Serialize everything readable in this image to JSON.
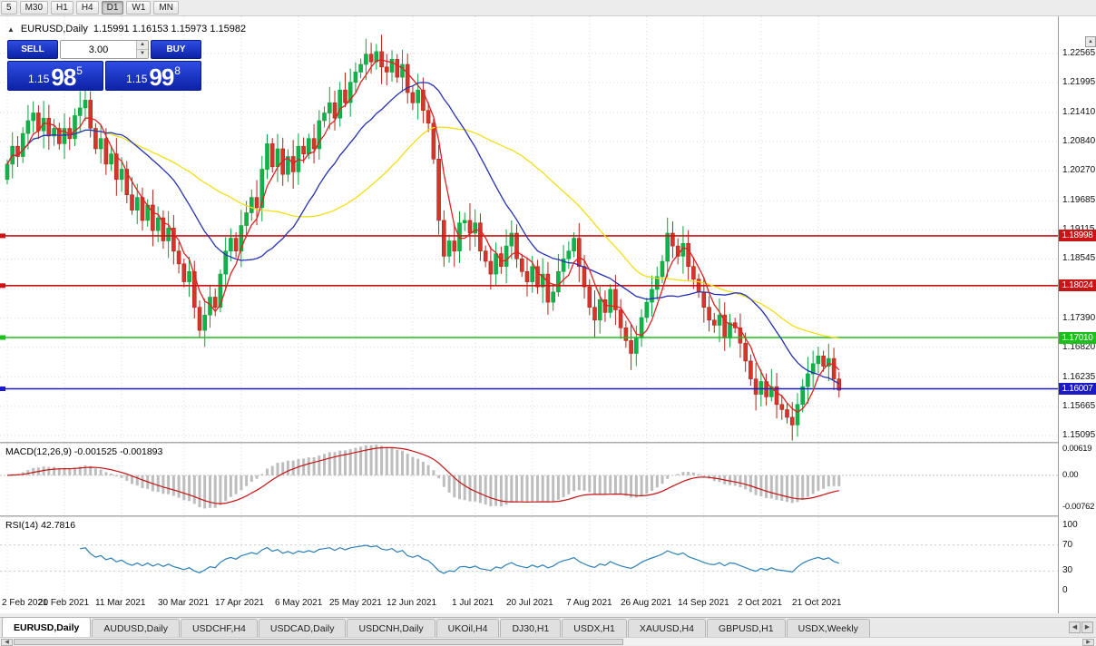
{
  "toolbar": {
    "timeframes": [
      "5",
      "M30",
      "H1",
      "H4",
      "D1",
      "W1",
      "MN"
    ],
    "active": "D1"
  },
  "chart_header": {
    "symbol": "EURUSD,Daily",
    "ohlc": "1.15991 1.16153 1.15973 1.15982"
  },
  "trade_panel": {
    "sell_label": "SELL",
    "buy_label": "BUY",
    "lots": "3.00",
    "sell_price": {
      "prefix": "1.15",
      "big": "98",
      "sup": "5"
    },
    "buy_price": {
      "prefix": "1.15",
      "big": "99",
      "sup": "8"
    }
  },
  "price_axis": {
    "ticks": [
      "1.22565",
      "1.21995",
      "1.21410",
      "1.20840",
      "1.20270",
      "1.19685",
      "1.19115",
      "1.18545",
      "1.17960",
      "1.17390",
      "1.16820",
      "1.16235",
      "1.15665",
      "1.15095"
    ]
  },
  "hlines": [
    {
      "price": 1.18998,
      "label": "1.18998",
      "color": "#c81414"
    },
    {
      "price": 1.18024,
      "label": "1.18024",
      "color": "#c81414"
    },
    {
      "price": 1.1701,
      "label": "1.17010",
      "color": "#1dbf1d"
    },
    {
      "price": 1.16007,
      "label": "1.16007",
      "color": "#1a1ac8"
    }
  ],
  "macd": {
    "label": "MACD(12,26,9) -0.001525 -0.001893",
    "axis": [
      "0.00619",
      "0.00",
      "-0.00762"
    ],
    "fast": 12,
    "slow": 26,
    "signal_period": 9,
    "ylim": [
      -0.0095,
      0.0075
    ]
  },
  "rsi": {
    "label": "RSI(14) 42.7816",
    "axis": [
      "100",
      "70",
      "30",
      "0"
    ],
    "period": 14,
    "levels": [
      70,
      30
    ]
  },
  "tabs": [
    {
      "label": "EURUSD,Daily",
      "active": true
    },
    {
      "label": "AUDUSD,Daily",
      "active": false
    },
    {
      "label": "USDCHF,H4",
      "active": false
    },
    {
      "label": "USDCAD,Daily",
      "active": false
    },
    {
      "label": "USDCNH,Daily",
      "active": false
    },
    {
      "label": "UKOil,H4",
      "active": false
    },
    {
      "label": "DJ30,H1",
      "active": false
    },
    {
      "label": "USDX,H1",
      "active": false
    },
    {
      "label": "XAUUSD,H4",
      "active": false
    },
    {
      "label": "GBPUSD,H1",
      "active": false
    },
    {
      "label": "USDX,Weekly",
      "active": false
    }
  ],
  "colors": {
    "bull": "#0ba23e",
    "bull_fill": "#12b24a",
    "bear": "#b3241a",
    "bear_fill": "#d4362a",
    "macd_hist": "#bdbdbd",
    "macd_signal": "#c41414",
    "rsi_line": "#2d7fb8",
    "grid": "#d9d9d9"
  },
  "chart_data": {
    "type": "candlestick",
    "title": "EURUSD,Daily",
    "current_bar": {
      "open": 1.15991,
      "high": 1.16153,
      "low": 1.15973,
      "close": 1.15982
    },
    "bid": 1.15985,
    "ask": 1.15998,
    "ylim": [
      1.1497,
      1.2329
    ],
    "x_ticks": {
      "labels": [
        "2 Feb 2021",
        "20 Feb 2021",
        "11 Mar 2021",
        "30 Mar 2021",
        "17 Apr 2021",
        "6 May 2021",
        "25 May 2021",
        "12 Jun 2021",
        "1 Jul 2021",
        "20 Jul 2021",
        "7 Aug 2021",
        "26 Aug 2021",
        "14 Sep 2021",
        "2 Oct 2021",
        "21 Oct 2021"
      ],
      "indices": [
        0,
        11,
        22,
        34,
        45,
        56,
        67,
        78,
        90,
        101,
        112,
        123,
        134,
        145,
        156
      ]
    },
    "first_open": 1.201,
    "closes": [
      1.204,
      1.2075,
      1.2055,
      1.21,
      1.2125,
      1.214,
      1.2105,
      1.213,
      1.2095,
      1.211,
      1.208,
      1.211,
      1.209,
      1.2135,
      1.215,
      1.2165,
      1.211,
      1.207,
      1.209,
      1.204,
      1.206,
      1.201,
      1.203,
      1.198,
      1.195,
      1.1975,
      1.193,
      1.196,
      1.191,
      1.1935,
      1.189,
      1.1915,
      1.187,
      1.1845,
      1.181,
      1.183,
      1.176,
      1.1715,
      1.1745,
      1.178,
      1.176,
      1.1825,
      1.187,
      1.1895,
      1.187,
      1.192,
      1.1945,
      1.1975,
      1.1955,
      1.203,
      1.208,
      1.2035,
      1.207,
      1.202,
      1.2055,
      1.2025,
      1.2075,
      1.206,
      1.209,
      1.207,
      1.2125,
      1.214,
      1.216,
      1.213,
      1.2185,
      1.216,
      1.22,
      1.222,
      1.2235,
      1.2255,
      1.224,
      1.226,
      1.223,
      1.222,
      1.2245,
      1.221,
      1.2235,
      1.218,
      1.216,
      1.2185,
      1.2145,
      1.212,
      1.205,
      1.193,
      1.186,
      1.189,
      1.187,
      1.1925,
      1.193,
      1.1905,
      1.1925,
      1.187,
      1.185,
      1.1825,
      1.1865,
      1.184,
      1.188,
      1.1905,
      1.1855,
      1.183,
      1.181,
      1.184,
      1.18,
      1.1825,
      1.177,
      1.179,
      1.183,
      1.1855,
      1.187,
      1.1895,
      1.184,
      1.18,
      1.176,
      1.1735,
      1.1775,
      1.175,
      1.1795,
      1.1755,
      1.172,
      1.1695,
      1.167,
      1.17,
      1.174,
      1.177,
      1.1795,
      1.182,
      1.185,
      1.1905,
      1.188,
      1.186,
      1.1885,
      1.184,
      1.1815,
      1.179,
      1.176,
      1.1735,
      1.1725,
      1.1745,
      1.17,
      1.173,
      1.172,
      1.169,
      1.1655,
      1.162,
      1.159,
      1.1615,
      1.1585,
      1.1605,
      1.157,
      1.156,
      1.1545,
      1.153,
      1.157,
      1.1605,
      1.163,
      1.165,
      1.1665,
      1.1645,
      1.166,
      1.162,
      1.1598
    ],
    "moving_averages": [
      {
        "period": 40,
        "color": "#f2df12"
      },
      {
        "period": 20,
        "color": "#2531b4"
      },
      {
        "period": 5,
        "color": "#e02020"
      }
    ]
  }
}
